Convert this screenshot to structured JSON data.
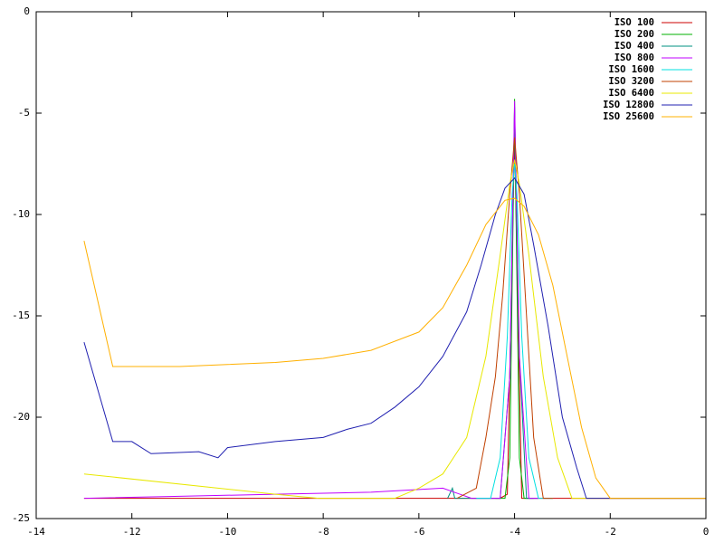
{
  "chart_data": {
    "type": "line",
    "xlim": [
      -14,
      0
    ],
    "ylim": [
      -25,
      0
    ],
    "xticks": [
      -14,
      -12,
      -10,
      -8,
      -6,
      -4,
      -2,
      0
    ],
    "yticks": [
      -25,
      -20,
      -15,
      -10,
      -5,
      0
    ],
    "legend": "top-right",
    "series": [
      {
        "name": "ISO 100",
        "color": "#cc0000",
        "x": [
          -13,
          -8,
          -4.3,
          -4.15,
          -4.05,
          -4.0,
          -3.95,
          -3.85,
          -3.7,
          0
        ],
        "values": [
          -24,
          -24,
          -24,
          -23.8,
          -12,
          -6.2,
          -12,
          -24,
          -24,
          -24
        ]
      },
      {
        "name": "ISO 200",
        "color": "#00b000",
        "x": [
          -4.4,
          -4.2,
          -4.1,
          -4.03,
          -4.0,
          -3.97,
          -3.9,
          -3.8,
          -3.6
        ],
        "values": [
          -24,
          -24,
          -22,
          -10,
          -4.3,
          -10,
          -22,
          -24,
          -24
        ]
      },
      {
        "name": "ISO 400",
        "color": "#009080",
        "x": [
          -5.4,
          -5.3,
          -5.25,
          -4.3,
          -4.1,
          -4.0,
          -3.9,
          -3.75,
          -3.5
        ],
        "values": [
          -24,
          -23.5,
          -24,
          -24,
          -18,
          -4.7,
          -17,
          -24,
          -24
        ]
      },
      {
        "name": "ISO 800",
        "color": "#c000ff",
        "x": [
          -13,
          -11,
          -9,
          -7,
          -5.5,
          -4.9,
          -4.3,
          -4.1,
          -4.0,
          -3.9,
          -3.7,
          -3.5
        ],
        "values": [
          -24,
          -23.9,
          -23.8,
          -23.7,
          -23.5,
          -24,
          -24,
          -18,
          -4.4,
          -17,
          -24,
          -24
        ]
      },
      {
        "name": "ISO 1600",
        "color": "#00e0e0",
        "x": [
          -4.8,
          -4.5,
          -4.3,
          -4.15,
          -4.05,
          -4.0,
          -3.95,
          -3.85,
          -3.7,
          -3.5,
          -3.2
        ],
        "values": [
          -24,
          -24,
          -22,
          -16,
          -9,
          -7.5,
          -9,
          -16,
          -22,
          -24,
          -24
        ]
      },
      {
        "name": "ISO 3200",
        "color": "#c04000",
        "x": [
          -5.2,
          -4.8,
          -4.6,
          -4.4,
          -4.25,
          -4.1,
          -4.0,
          -3.9,
          -3.75,
          -3.6,
          -3.4,
          -3.2
        ],
        "values": [
          -24,
          -23.5,
          -21,
          -18,
          -14,
          -9,
          -6.2,
          -9,
          -15,
          -21,
          -24,
          -24
        ]
      },
      {
        "name": "ISO 6400",
        "color": "#e8e800",
        "x": [
          -13,
          -9,
          -8.1,
          -6.5,
          -6,
          -5.5,
          -5,
          -4.6,
          -4.3,
          -4.1,
          -4.0,
          -3.9,
          -3.7,
          -3.4,
          -3.1,
          -2.8,
          -2.5,
          0
        ],
        "values": [
          -22.8,
          -23.8,
          -24,
          -24,
          -23.5,
          -22.8,
          -21,
          -17,
          -12,
          -8.5,
          -7.3,
          -8.5,
          -12,
          -18,
          -22,
          -24,
          -24,
          -24
        ]
      },
      {
        "name": "ISO 12800",
        "color": "#2020b0",
        "x": [
          -13,
          -12.4,
          -12,
          -11.6,
          -10.6,
          -10.2,
          -10,
          -9,
          -8,
          -7.5,
          -7,
          -6.5,
          -6,
          -5.5,
          -5,
          -4.7,
          -4.4,
          -4.2,
          -4.0,
          -3.8,
          -3.6,
          -3.3,
          -3,
          -2.7,
          -2.5,
          -2.2,
          0
        ],
        "values": [
          -16.3,
          -21.2,
          -21.2,
          -21.8,
          -21.7,
          -22,
          -21.5,
          -21.2,
          -21,
          -20.6,
          -20.3,
          -19.5,
          -18.5,
          -17,
          -14.8,
          -12.5,
          -10,
          -8.7,
          -8.2,
          -9,
          -11.5,
          -15.5,
          -20,
          -22.5,
          -24,
          -24,
          -24
        ]
      },
      {
        "name": "ISO 25600",
        "color": "#ffb000",
        "x": [
          -13,
          -12.4,
          -11,
          -10,
          -9,
          -8,
          -7,
          -6,
          -5.5,
          -5,
          -4.6,
          -4.2,
          -4.0,
          -3.8,
          -3.5,
          -3.2,
          -2.9,
          -2.6,
          -2.3,
          -2,
          -1.8,
          0
        ],
        "values": [
          -11.3,
          -17.5,
          -17.5,
          -17.4,
          -17.3,
          -17.1,
          -16.7,
          -15.8,
          -14.6,
          -12.5,
          -10.5,
          -9.3,
          -9.2,
          -9.6,
          -11,
          -13.5,
          -17,
          -20.5,
          -23,
          -24,
          -24,
          -24
        ]
      }
    ]
  }
}
